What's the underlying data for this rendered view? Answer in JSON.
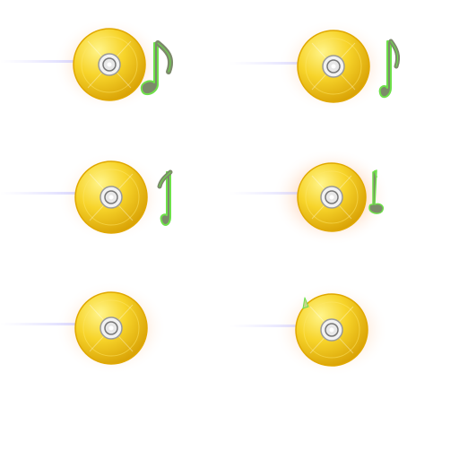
{
  "sprite_sheet": {
    "background": "#ffffff",
    "disc_colors": {
      "gold_light": "#fff27a",
      "gold_mid": "#f5cf1f",
      "gold_dark": "#c99000",
      "hub": "#f4f4f4",
      "hub_ring": "#8f8f8f",
      "glow": "#ff7a2a",
      "flare": "#c9c6ff"
    },
    "note_colors": {
      "fill": "#7c8a6a",
      "outline": "#6ee04a"
    },
    "frames": [
      {
        "id": "frame-1",
        "icon": "music-disc-icon",
        "note": "eighth-note-icon",
        "note_progress": 1.0
      },
      {
        "id": "frame-2",
        "icon": "music-disc-icon",
        "note": "eighth-note-icon",
        "note_progress": 0.85
      },
      {
        "id": "frame-3",
        "icon": "music-disc-icon",
        "note": "eighth-note-icon",
        "note_progress": 0.65
      },
      {
        "id": "frame-4",
        "icon": "music-disc-icon",
        "note": "eighth-note-icon",
        "note_progress": 0.45
      },
      {
        "id": "frame-5",
        "icon": "music-disc-icon",
        "note": "eighth-note-icon",
        "note_progress": 0.0
      },
      {
        "id": "frame-6",
        "icon": "music-disc-icon",
        "note": "eighth-note-icon",
        "note_progress": 0.15
      }
    ]
  }
}
